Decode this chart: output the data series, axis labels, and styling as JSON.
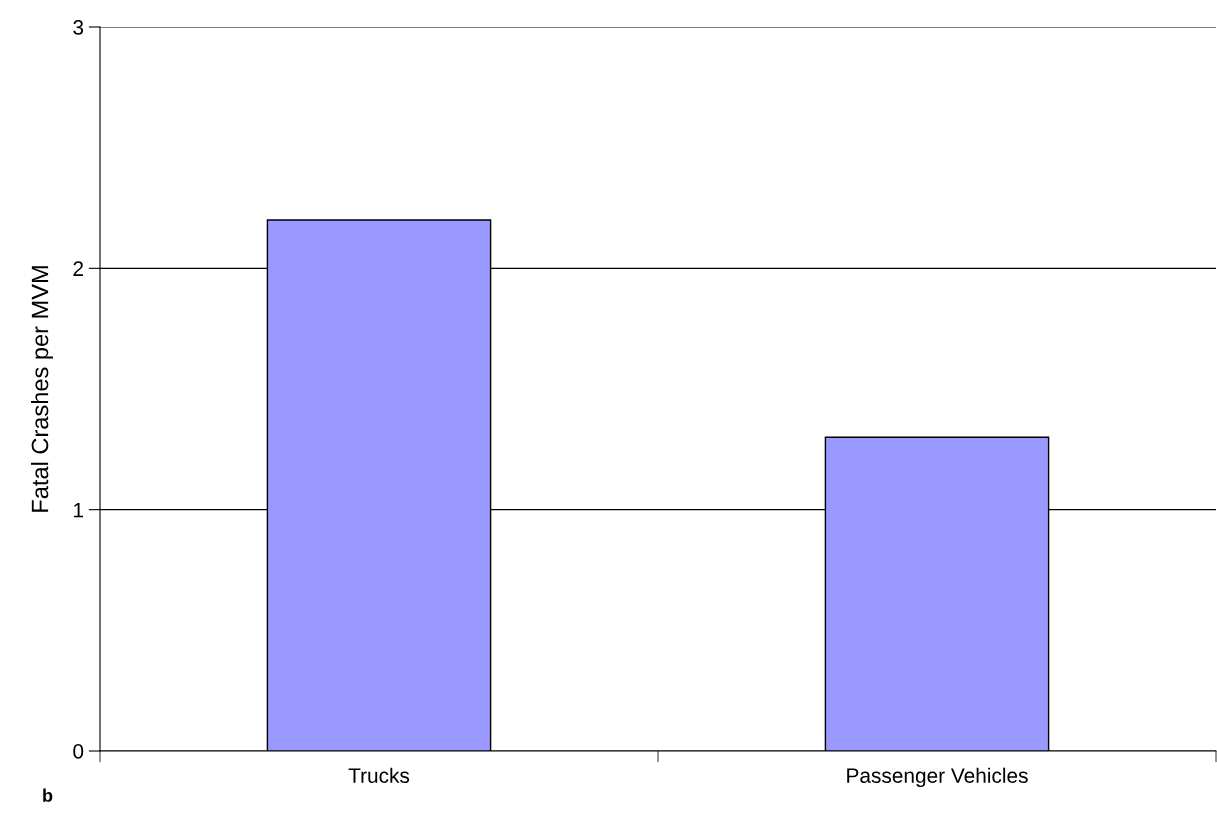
{
  "chart_data": {
    "type": "bar",
    "ylabel": "Fatal Crashes per MVM",
    "categories": [
      "Trucks",
      "Passenger Vehicles"
    ],
    "values": [
      2.2,
      1.3
    ],
    "color": "#9999ff",
    "ylim": [
      0,
      3
    ],
    "yticks": [
      0,
      1,
      2,
      3
    ],
    "grid": "y",
    "legend": false,
    "annotations": [
      "b"
    ]
  }
}
